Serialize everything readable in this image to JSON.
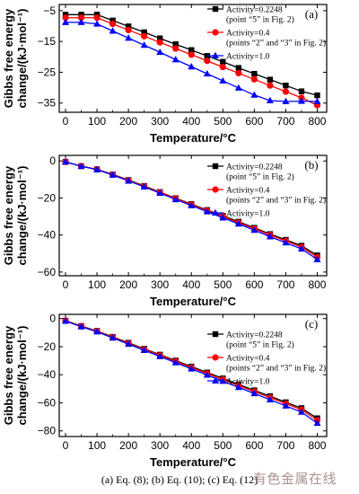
{
  "chart_data": [
    {
      "type": "line",
      "panel_tag": "(a)",
      "x": [
        0,
        50,
        100,
        150,
        200,
        250,
        300,
        350,
        400,
        450,
        500,
        550,
        600,
        650,
        700,
        750,
        800
      ],
      "xticks": [
        "0",
        "100",
        "200",
        "300",
        "400",
        "500",
        "600",
        "700",
        "800"
      ],
      "xlim": [
        -20,
        830
      ],
      "ylim": [
        -38,
        -3
      ],
      "yticks": [
        -5,
        -15,
        -25,
        -35
      ],
      "xlabel": "Temperature/°C",
      "ylabel": "Gibbs free energy change/(kJ·mol⁻¹)",
      "legend_position": "top-right",
      "series": [
        {
          "name": "Activity=0.2248 (point “5” in Fig. 2)",
          "color": "#000000",
          "marker": "square",
          "values": [
            -6.3,
            -6.3,
            -6.3,
            -8.2,
            -10.1,
            -12.0,
            -14.0,
            -15.9,
            -17.8,
            -19.7,
            -21.6,
            -23.6,
            -25.5,
            -27.4,
            -29.3,
            -31.2,
            -32.5
          ]
        },
        {
          "name": "Activity=0.4 (points “2” and “3” in Fig. 2)",
          "color": "#ff0000",
          "marker": "circle",
          "values": [
            -7.3,
            -7.3,
            -7.3,
            -9.3,
            -11.3,
            -13.3,
            -15.3,
            -17.3,
            -19.3,
            -21.3,
            -23.3,
            -25.3,
            -27.3,
            -29.3,
            -31.3,
            -33.3,
            -35.7
          ]
        },
        {
          "name": "Activity=1.0",
          "color": "#0000ff",
          "marker": "triangle",
          "values": [
            -8.8,
            -8.8,
            -9.3,
            -11.6,
            -13.9,
            -16.2,
            -18.5,
            -20.9,
            -23.2,
            -25.5,
            -27.8,
            -30.1,
            -32.4,
            -34.2,
            -34.5,
            -34.4,
            -34.5
          ]
        }
      ],
      "legend": [
        {
          "marker": "square",
          "color": "#000000",
          "lines": [
            "Activity=0.2248",
            "(point “5” in Fig. 2)"
          ]
        },
        {
          "marker": "circle",
          "color": "#ff0000",
          "lines": [
            "Activity=0.4",
            "(points “2” and “3” in Fig. 2)"
          ]
        },
        {
          "marker": "triangle",
          "color": "#0000ff",
          "lines": [
            "Activity=1.0"
          ]
        }
      ]
    },
    {
      "type": "line",
      "panel_tag": "(b)",
      "x": [
        0,
        50,
        100,
        150,
        200,
        250,
        300,
        350,
        400,
        450,
        500,
        550,
        600,
        650,
        700,
        750,
        800
      ],
      "xticks": [
        "0",
        "100",
        "200",
        "300",
        "400",
        "500",
        "600",
        "700",
        "800"
      ],
      "xlim": [
        -20,
        830
      ],
      "ylim": [
        -62,
        3
      ],
      "yticks": [
        0,
        -20,
        -40,
        -60
      ],
      "xlabel": "Temperature/°C",
      "ylabel": "Gibbs free energy change/(kJ·mol⁻¹)",
      "legend_position": "top-right",
      "series": [
        {
          "name": "Activity=0.2248 (point “5” in Fig. 2)",
          "color": "#000000",
          "marker": "square",
          "values": [
            -0.5,
            -2.8,
            -4.5,
            -7.3,
            -10.3,
            -13.5,
            -16.8,
            -20.1,
            -23.3,
            -26.5,
            -29.6,
            -32.8,
            -36.1,
            -39.5,
            -42.6,
            -45.8,
            -51.0
          ]
        },
        {
          "name": "Activity=0.4 (points “2” and “3” in Fig. 2)",
          "color": "#ff0000",
          "marker": "circle",
          "values": [
            -0.5,
            -2.8,
            -4.6,
            -7.4,
            -10.5,
            -13.7,
            -17.0,
            -20.3,
            -23.6,
            -26.8,
            -30.0,
            -33.3,
            -36.6,
            -40.0,
            -43.2,
            -46.5,
            -52.0
          ]
        },
        {
          "name": "Activity=1.0",
          "color": "#0000ff",
          "marker": "triangle",
          "values": [
            -0.5,
            -2.9,
            -4.7,
            -7.6,
            -10.8,
            -14.0,
            -17.4,
            -20.8,
            -24.1,
            -27.4,
            -30.7,
            -34.0,
            -37.4,
            -40.9,
            -44.2,
            -47.5,
            -53.2
          ]
        }
      ],
      "legend": [
        {
          "marker": "square",
          "color": "#000000",
          "lines": [
            "Activity=0.2248",
            "(point “5” in Fig. 2)"
          ]
        },
        {
          "marker": "circle",
          "color": "#ff0000",
          "lines": [
            "Activity=0.4",
            "(points “2” and “3” in Fig. 2)"
          ]
        },
        {
          "marker": "triangle",
          "color": "#0000ff",
          "lines": [
            "Activity=1.0"
          ]
        }
      ]
    },
    {
      "type": "line",
      "panel_tag": "(c)",
      "x": [
        0,
        50,
        100,
        150,
        200,
        250,
        300,
        350,
        400,
        450,
        500,
        550,
        600,
        650,
        700,
        750,
        800
      ],
      "xticks": [
        "0",
        "100",
        "200",
        "300",
        "400",
        "500",
        "600",
        "700",
        "800"
      ],
      "xlim": [
        -20,
        830
      ],
      "ylim": [
        -84,
        3
      ],
      "yticks": [
        0,
        -20,
        -40,
        -60,
        -80
      ],
      "xlabel": "Temperature/°C",
      "ylabel": "Gibbs free energy change/(kJ·mol⁻¹)",
      "legend_position": "right",
      "series": [
        {
          "name": "Activity=0.2248 (point “5” in Fig. 2)",
          "color": "#000000",
          "marker": "square",
          "values": [
            -1.5,
            -5.3,
            -8.8,
            -13.0,
            -17.2,
            -21.5,
            -25.7,
            -29.9,
            -34.2,
            -38.4,
            -42.6,
            -46.9,
            -51.1,
            -55.3,
            -59.6,
            -63.8,
            -71.0
          ]
        },
        {
          "name": "Activity=0.4 (points “2” and “3” in Fig. 2)",
          "color": "#ff0000",
          "marker": "circle",
          "values": [
            -1.6,
            -5.5,
            -9.0,
            -13.3,
            -17.6,
            -21.9,
            -26.2,
            -30.5,
            -34.8,
            -39.1,
            -43.4,
            -47.7,
            -52.0,
            -56.3,
            -60.6,
            -64.9,
            -72.5
          ]
        },
        {
          "name": "Activity=1.0",
          "color": "#0000ff",
          "marker": "triangle",
          "values": [
            -1.8,
            -5.8,
            -9.4,
            -13.8,
            -18.2,
            -22.6,
            -27.0,
            -31.4,
            -35.8,
            -40.2,
            -44.6,
            -49.0,
            -53.4,
            -57.8,
            -62.2,
            -66.6,
            -74.5
          ]
        }
      ],
      "legend": [
        {
          "marker": "square",
          "color": "#000000",
          "lines": [
            "Activity=0.2248",
            "(point “5” in Fig. 2)"
          ]
        },
        {
          "marker": "circle",
          "color": "#ff0000",
          "lines": [
            "Activity=0.4",
            "(points “2” and “3” in Fig. 2)"
          ]
        },
        {
          "marker": "triangle",
          "color": "#0000ff",
          "lines": [
            "Activity=1.0"
          ]
        }
      ]
    }
  ],
  "caption": "(a) Eq. (8); (b) Eq. (10); (c) Eq. (12)",
  "watermark": "有色金属在线"
}
